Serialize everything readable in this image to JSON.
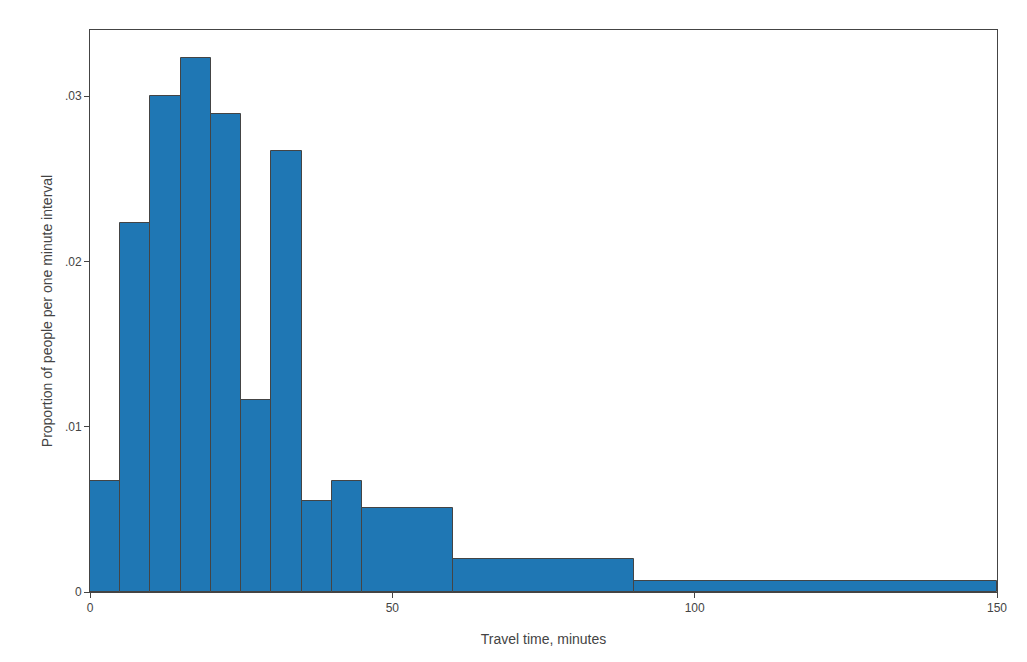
{
  "chart_data": {
    "type": "histogram",
    "xlabel": "Travel time, minutes",
    "ylabel": "Proportion of people per one minute interval",
    "bins": [
      0,
      5,
      10,
      15,
      20,
      25,
      30,
      35,
      40,
      45,
      60,
      90,
      150
    ],
    "values": [
      0.0067,
      0.0223,
      0.03,
      0.0323,
      0.0289,
      0.0116,
      0.0267,
      0.0055,
      0.0067,
      0.0051,
      0.002,
      0.00067
    ],
    "xlim": [
      0,
      150
    ],
    "ylim": [
      0,
      0.034
    ],
    "xticks": [
      0,
      50,
      100,
      150
    ],
    "yticks": [
      0,
      {
        "value": 0.01,
        "label": ".01"
      },
      {
        "value": 0.02,
        "label": ".02"
      },
      {
        "value": 0.03,
        "label": ".03"
      }
    ],
    "grid": false
  }
}
